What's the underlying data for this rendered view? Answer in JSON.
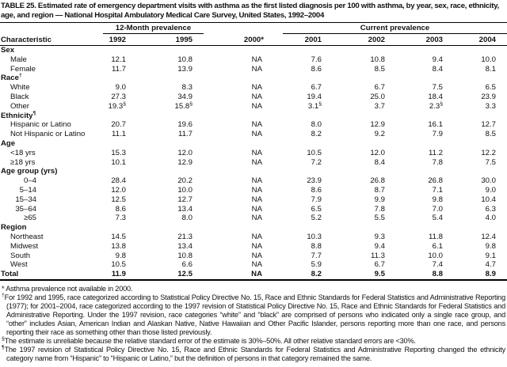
{
  "title": "TABLE 25. Estimated rate of emergency department visits with asthma as the first listed diagnosis per 100 with asthma, by year, sex, race, ethnicity, age, and region — National Hospital Ambulatory Medical Care Survey, United States, 1992–2004",
  "table": {
    "col_groups": [
      {
        "label": "",
        "span": 1,
        "underline": false
      },
      {
        "label": "12-Month prevalence",
        "span": 2,
        "underline": true
      },
      {
        "label": "",
        "span": 1,
        "underline": false
      },
      {
        "label": "Current prevalence",
        "span": 4,
        "underline": true
      }
    ],
    "columns": [
      "Characteristic",
      "1992",
      "1995",
      "2000*",
      "2001",
      "2002",
      "2003",
      "2004"
    ],
    "rows": [
      {
        "label": "Sex",
        "type": "group",
        "values": []
      },
      {
        "label": "Male",
        "type": "data",
        "values": [
          "12.1",
          "10.8",
          "NA",
          "7.6",
          "10.8",
          "9.4",
          "10.0"
        ]
      },
      {
        "label": "Female",
        "type": "data",
        "values": [
          "11.7",
          "13.9",
          "NA",
          "8.6",
          "8.5",
          "8.4",
          "8.1"
        ]
      },
      {
        "label": "Race†",
        "type": "group",
        "values": []
      },
      {
        "label": "White",
        "type": "data",
        "values": [
          "9.0",
          "8.3",
          "NA",
          "6.7",
          "6.7",
          "7.5",
          "6.5"
        ]
      },
      {
        "label": "Black",
        "type": "data",
        "values": [
          "27.3",
          "34.9",
          "NA",
          "19.4",
          "25.0",
          "18.4",
          "23.9"
        ]
      },
      {
        "label": "Other",
        "type": "data",
        "values": [
          "19.3§",
          "15.8§",
          "NA",
          "3.1§",
          "3.7",
          "2.3§",
          "3.3"
        ]
      },
      {
        "label": "Ethnicity¶",
        "type": "group",
        "values": []
      },
      {
        "label": "Hispanic or Latino",
        "type": "data",
        "values": [
          "20.7",
          "19.6",
          "NA",
          "8.0",
          "12.9",
          "16.1",
          "12.7"
        ]
      },
      {
        "label": "Not Hispanic or Latino",
        "type": "data",
        "values": [
          "11.1",
          "11.7",
          "NA",
          "8.2",
          "9.2",
          "7.9",
          "8.5"
        ]
      },
      {
        "label": "Age",
        "type": "group",
        "values": []
      },
      {
        "label": "<18 yrs",
        "type": "data",
        "values": [
          "15.3",
          "12.0",
          "NA",
          "10.5",
          "12.0",
          "11.2",
          "12.2"
        ]
      },
      {
        "label": "≥18 yrs",
        "type": "data",
        "values": [
          "10.1",
          "12.9",
          "NA",
          "7.2",
          "8.4",
          "7.8",
          "7.5"
        ]
      },
      {
        "label": "Age group (yrs)",
        "type": "group",
        "values": []
      },
      {
        "label": "0–4",
        "type": "age",
        "values": [
          "28.4",
          "20.2",
          "NA",
          "23.9",
          "26.8",
          "26.8",
          "30.0"
        ]
      },
      {
        "label": "5–14",
        "type": "age",
        "values": [
          "12.0",
          "10.0",
          "NA",
          "8.6",
          "8.7",
          "7.1",
          "9.0"
        ]
      },
      {
        "label": "15–34",
        "type": "age",
        "values": [
          "12.5",
          "12.7",
          "NA",
          "7.9",
          "9.9",
          "9.8",
          "10.4"
        ]
      },
      {
        "label": "35–64",
        "type": "age",
        "values": [
          "8.6",
          "13.4",
          "NA",
          "6.5",
          "7.8",
          "7.0",
          "6.3"
        ]
      },
      {
        "label": "≥65",
        "type": "age",
        "values": [
          "7.3",
          "8.0",
          "NA",
          "5.2",
          "5.5",
          "5.4",
          "4.0"
        ]
      },
      {
        "label": "Region",
        "type": "group",
        "values": []
      },
      {
        "label": "Northeast",
        "type": "data",
        "values": [
          "14.5",
          "21.3",
          "NA",
          "10.3",
          "9.3",
          "11.8",
          "12.4"
        ]
      },
      {
        "label": "Midwest",
        "type": "data",
        "values": [
          "13.8",
          "13.4",
          "NA",
          "8.8",
          "9.4",
          "6.1",
          "9.8"
        ]
      },
      {
        "label": "South",
        "type": "data",
        "values": [
          "9.8",
          "10.8",
          "NA",
          "7.7",
          "11.3",
          "10.0",
          "9.1"
        ]
      },
      {
        "label": "West",
        "type": "data",
        "values": [
          "10.5",
          "6.6",
          "NA",
          "5.9",
          "6.7",
          "7.4",
          "4.7"
        ]
      },
      {
        "label": "Total",
        "type": "total",
        "values": [
          "11.9",
          "12.5",
          "NA",
          "8.2",
          "9.5",
          "8.8",
          "8.9"
        ]
      }
    ]
  },
  "footnotes": [
    {
      "marker": "*",
      "text": "Asthma prevalence not available in 2000."
    },
    {
      "marker": "†",
      "text": "For 1992 and 1995, race categorized according to Statistical Policy Directive No. 15, Race and Ethnic Standards for Federal Statistics and Administrative Reporting (1977); for 2001–2004, race categorized according to the 1997 revision of Statistical Policy Directive No. 15, Race and Ethnic Standards for Federal Statistics and Administrative Reporting. Under the 1997 revision, race categories “white” and “black” are comprised of persons who indicated only a single race group, and “other” includes Asian, American Indian and Alaskan Native, Native Hawaiian and Other Pacific Islander, persons reporting more than one race, and persons reporting their race as something other than those listed previously."
    },
    {
      "marker": "§",
      "text": "The estimate is unreliable because the relative standard error of the estimate is 30%–50%. All other relative standard errors are <30%."
    },
    {
      "marker": "¶",
      "text": "The 1997 revision of Statistical Policy Directive No. 15, Race and Ethnic Standards for Federal Statistics and Administrative Reporting changed the ethnicity category name from “Hispanic” to “Hispanic or Latino,” but the definition of persons in that category remained the same."
    }
  ]
}
